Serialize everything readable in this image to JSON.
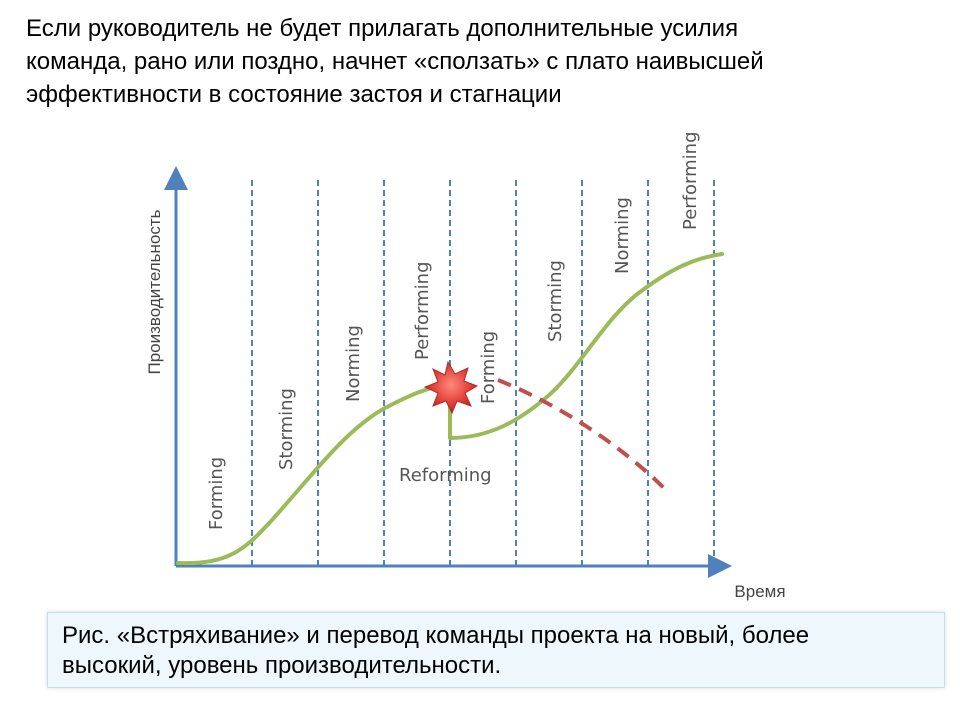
{
  "heading": {
    "lines": [
      "Если руководитель не будет прилагать дополнительные усилия",
      "команда, рано или поздно, начнет «сползать» с плато наивысшей",
      "эффективности в состояние застоя и стагнации"
    ]
  },
  "diagram": {
    "y_axis_label": "Производительность",
    "x_axis_label": "Время",
    "stage_labels": [
      "Forming",
      "Storming",
      "Norming",
      "Performing",
      "Forming",
      "Storming",
      "Norming",
      "Performing"
    ],
    "reforming_label": "Reforming",
    "colors": {
      "curve": "#9bbb59",
      "decline": "#c0504d",
      "stage_lines": "#4f81bd",
      "axes": "#4f81bd",
      "burst": "#e0403a"
    }
  },
  "caption": {
    "lines": [
      "Рис. «Встряхивание» и перевод команды проекта на новый, более",
      "высокий, уровень производительности."
    ]
  }
}
